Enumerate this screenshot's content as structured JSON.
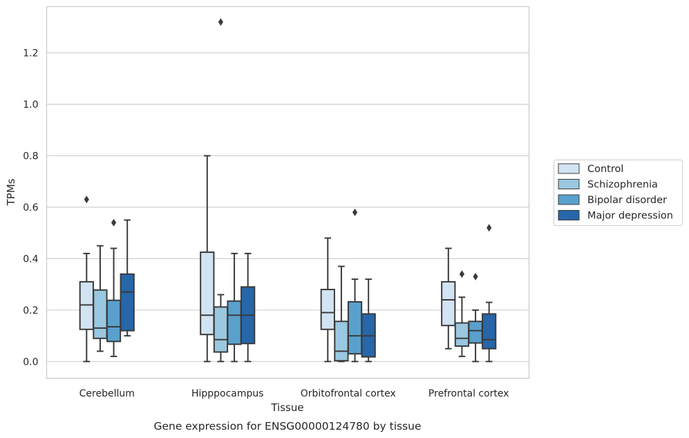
{
  "chart_data": {
    "type": "box",
    "title": "",
    "caption": "Gene expression for ENSG00000124780 by tissue",
    "xlabel": "Tissue",
    "ylabel": "TPMs",
    "ylim": [
      -0.065,
      1.38
    ],
    "yticks": [
      0.0,
      0.2,
      0.4,
      0.6,
      0.8,
      1.0,
      1.2
    ],
    "ytick_labels": [
      "0.0",
      "0.2",
      "0.4",
      "0.6",
      "0.8",
      "1.0",
      "1.2"
    ],
    "grid": "horizontal",
    "legend_position": "right",
    "categories": [
      "Cerebellum",
      "Hipppocampus",
      "Orbitofrontal cortex",
      "Prefrontal cortex"
    ],
    "series": [
      {
        "name": "Control",
        "color": "#d2e3f3",
        "boxes": [
          {
            "whislo": 0.0,
            "q1": 0.125,
            "med": 0.22,
            "q3": 0.31,
            "whishi": 0.42,
            "fliers": [
              0.63
            ]
          },
          {
            "whislo": 0.0,
            "q1": 0.105,
            "med": 0.18,
            "q3": 0.425,
            "whishi": 0.8,
            "fliers": []
          },
          {
            "whislo": 0.0,
            "q1": 0.125,
            "med": 0.19,
            "q3": 0.28,
            "whishi": 0.48,
            "fliers": []
          },
          {
            "whislo": 0.05,
            "q1": 0.14,
            "med": 0.24,
            "q3": 0.31,
            "whishi": 0.44,
            "fliers": []
          }
        ]
      },
      {
        "name": "Schizophrenia",
        "color": "#9ac8e0",
        "boxes": [
          {
            "whislo": 0.04,
            "q1": 0.09,
            "med": 0.13,
            "q3": 0.278,
            "whishi": 0.45,
            "fliers": []
          },
          {
            "whislo": 0.0,
            "q1": 0.037,
            "med": 0.085,
            "q3": 0.212,
            "whishi": 0.26,
            "fliers": [
              1.32
            ]
          },
          {
            "whislo": 0.0,
            "q1": 0.003,
            "med": 0.04,
            "q3": 0.156,
            "whishi": 0.37,
            "fliers": []
          },
          {
            "whislo": 0.02,
            "q1": 0.06,
            "med": 0.09,
            "q3": 0.15,
            "whishi": 0.25,
            "fliers": [
              0.34
            ]
          }
        ]
      },
      {
        "name": "Bipolar disorder",
        "color": "#5aa0cd",
        "boxes": [
          {
            "whislo": 0.02,
            "q1": 0.078,
            "med": 0.135,
            "q3": 0.238,
            "whishi": 0.44,
            "fliers": [
              0.54
            ]
          },
          {
            "whislo": 0.0,
            "q1": 0.067,
            "med": 0.18,
            "q3": 0.235,
            "whishi": 0.42,
            "fliers": []
          },
          {
            "whislo": 0.0,
            "q1": 0.03,
            "med": 0.1,
            "q3": 0.232,
            "whishi": 0.32,
            "fliers": [
              0.58
            ]
          },
          {
            "whislo": 0.0,
            "q1": 0.072,
            "med": 0.12,
            "q3": 0.156,
            "whishi": 0.2,
            "fliers": [
              0.33
            ]
          }
        ]
      },
      {
        "name": "Major depression",
        "color": "#2666a9",
        "boxes": [
          {
            "whislo": 0.1,
            "q1": 0.12,
            "med": 0.27,
            "q3": 0.34,
            "whishi": 0.55,
            "fliers": []
          },
          {
            "whislo": 0.0,
            "q1": 0.07,
            "med": 0.18,
            "q3": 0.29,
            "whishi": 0.42,
            "fliers": []
          },
          {
            "whislo": 0.0,
            "q1": 0.018,
            "med": 0.1,
            "q3": 0.185,
            "whishi": 0.32,
            "fliers": []
          },
          {
            "whislo": 0.0,
            "q1": 0.05,
            "med": 0.085,
            "q3": 0.185,
            "whishi": 0.23,
            "fliers": [
              0.52
            ]
          }
        ]
      }
    ]
  }
}
